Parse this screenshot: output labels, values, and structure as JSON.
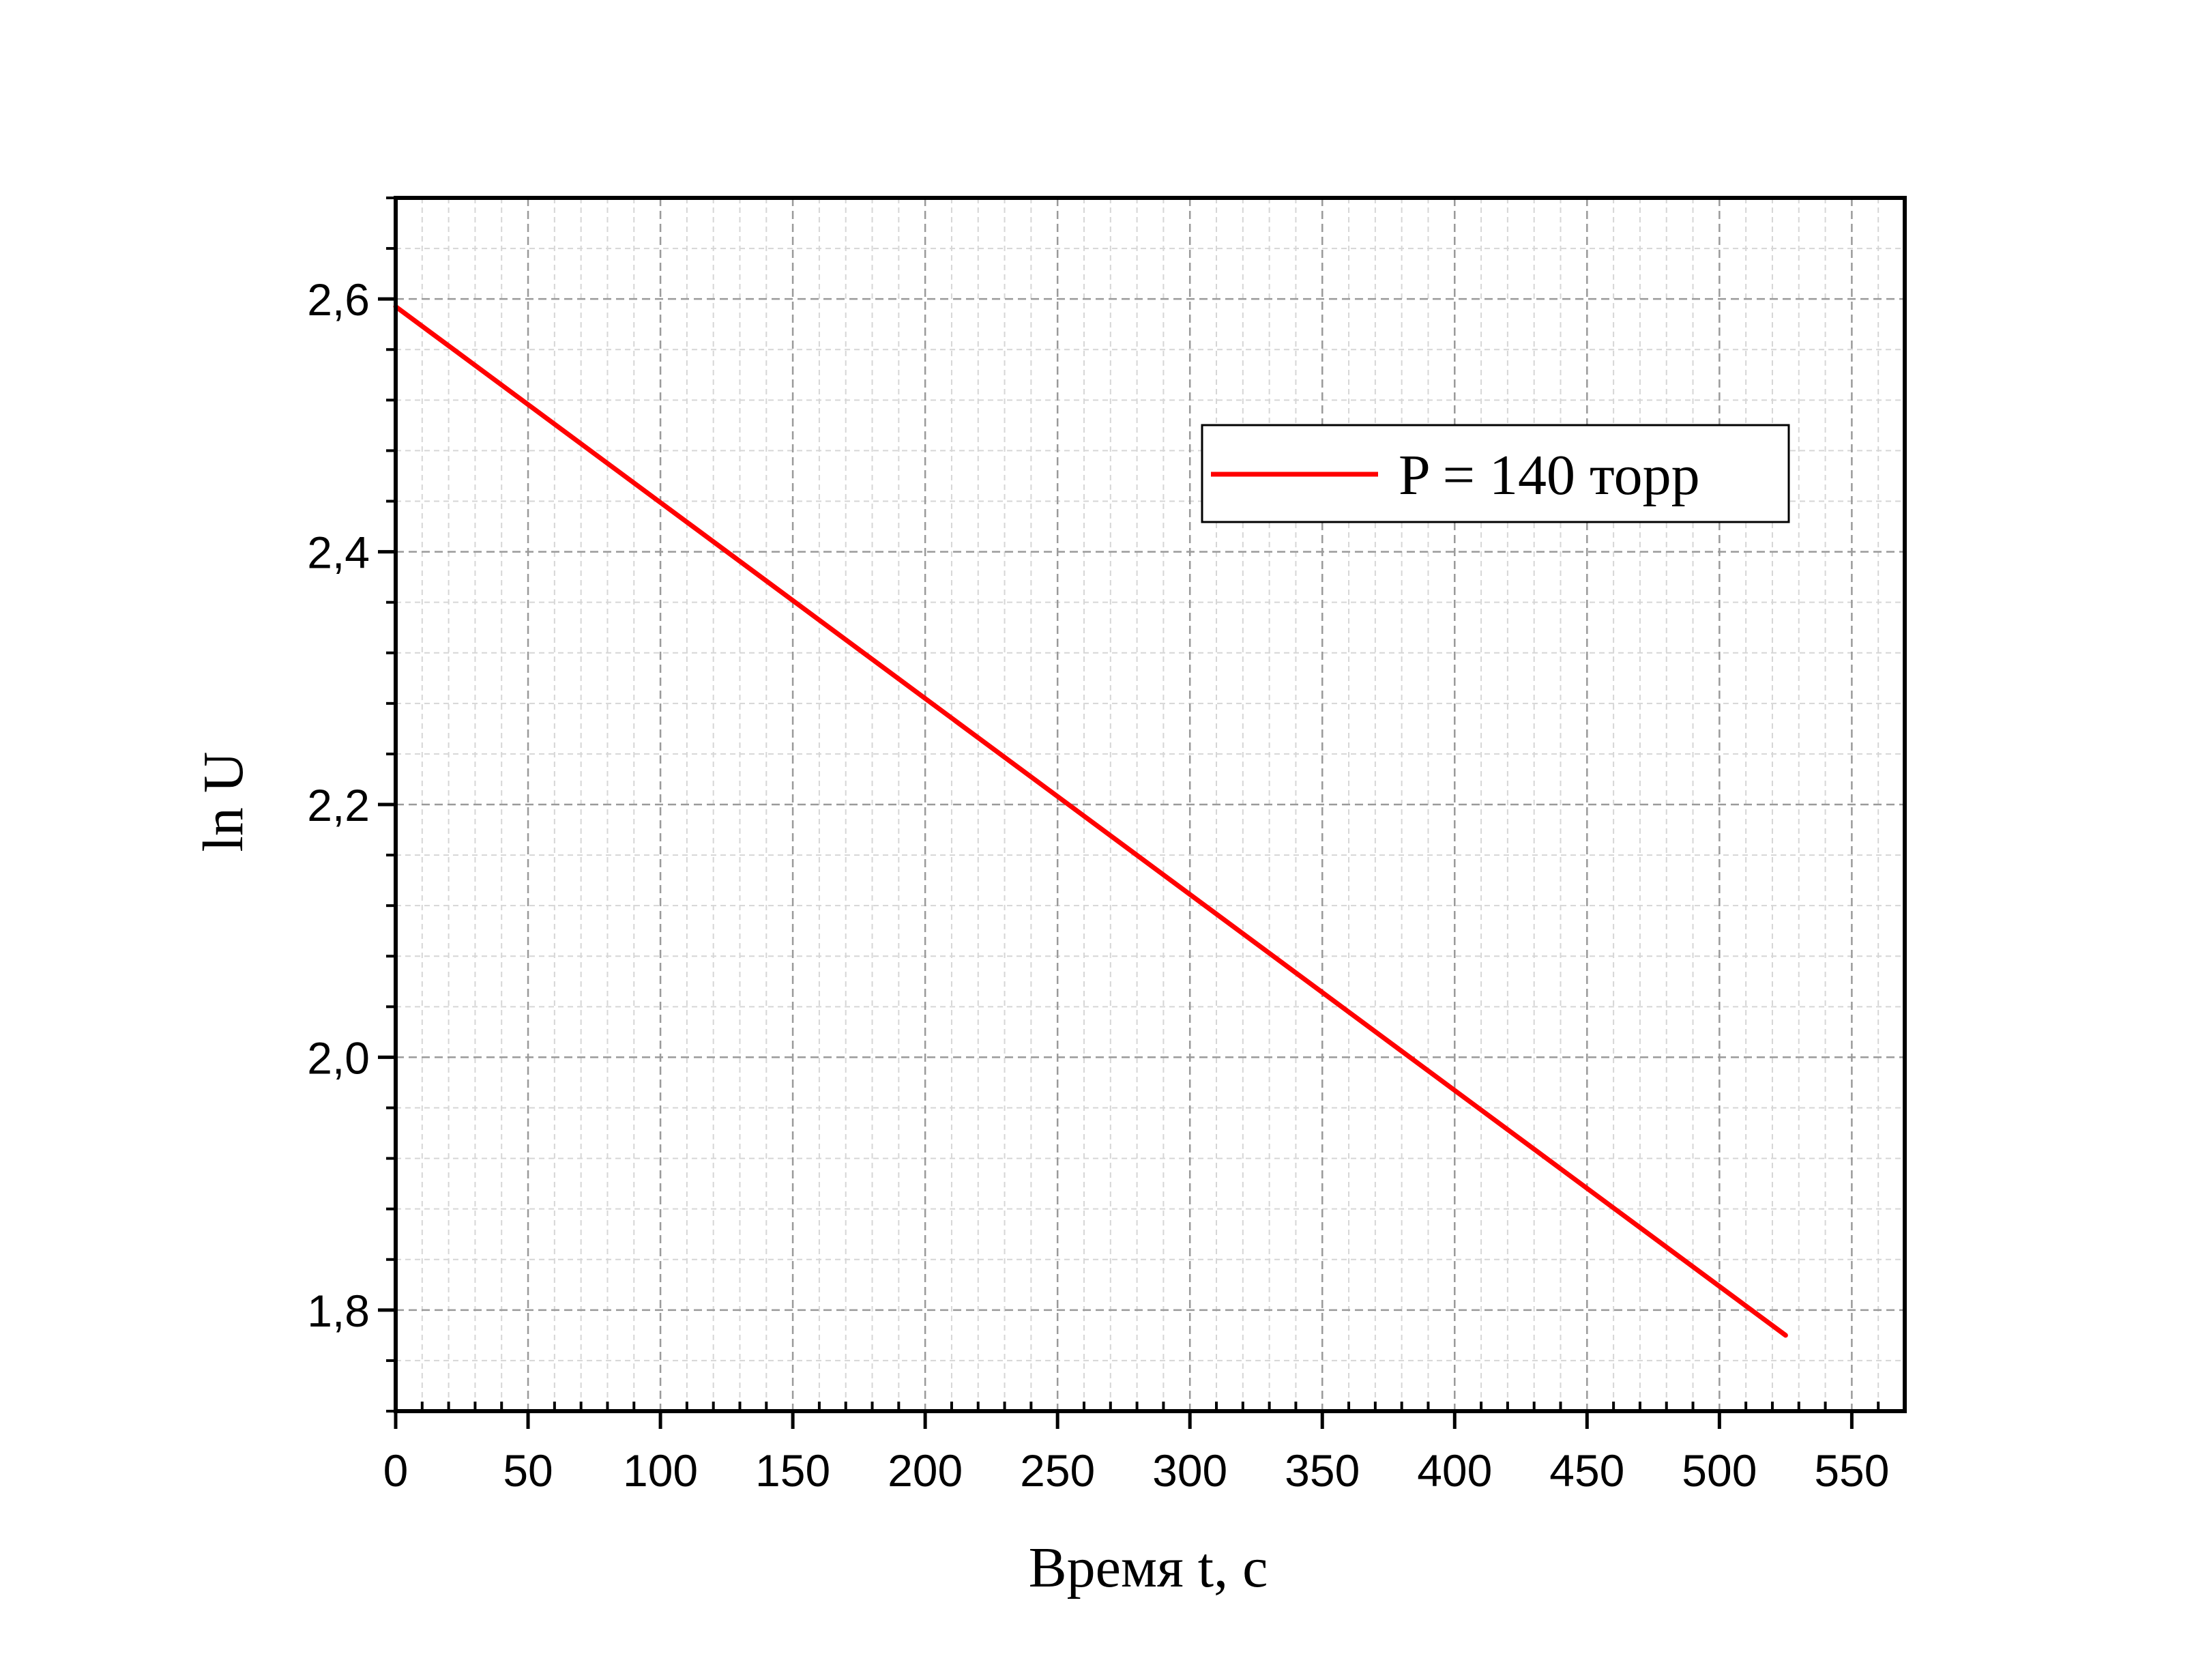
{
  "chart_data": {
    "type": "line",
    "xlabel": "Время t, с",
    "ylabel": "ln U",
    "xlim": [
      0,
      570
    ],
    "ylim": [
      1.72,
      2.68
    ],
    "xticks": [
      0,
      50,
      100,
      150,
      200,
      250,
      300,
      350,
      400,
      450,
      500,
      550
    ],
    "xtick_labels": [
      "0",
      "50",
      "100",
      "150",
      "200",
      "250",
      "300",
      "350",
      "400",
      "450",
      "500",
      "550"
    ],
    "yticks": [
      1.8,
      2.0,
      2.2,
      2.4,
      2.6
    ],
    "ytick_labels": [
      "1,8",
      "2,0",
      "2,2",
      "2,4",
      "2,6"
    ],
    "grid": true,
    "legend_position": "upper-right",
    "series": [
      {
        "name": "P = 140 торр",
        "color": "#ff0000",
        "x": [
          0,
          525
        ],
        "y": [
          2.594,
          1.78
        ]
      }
    ]
  }
}
